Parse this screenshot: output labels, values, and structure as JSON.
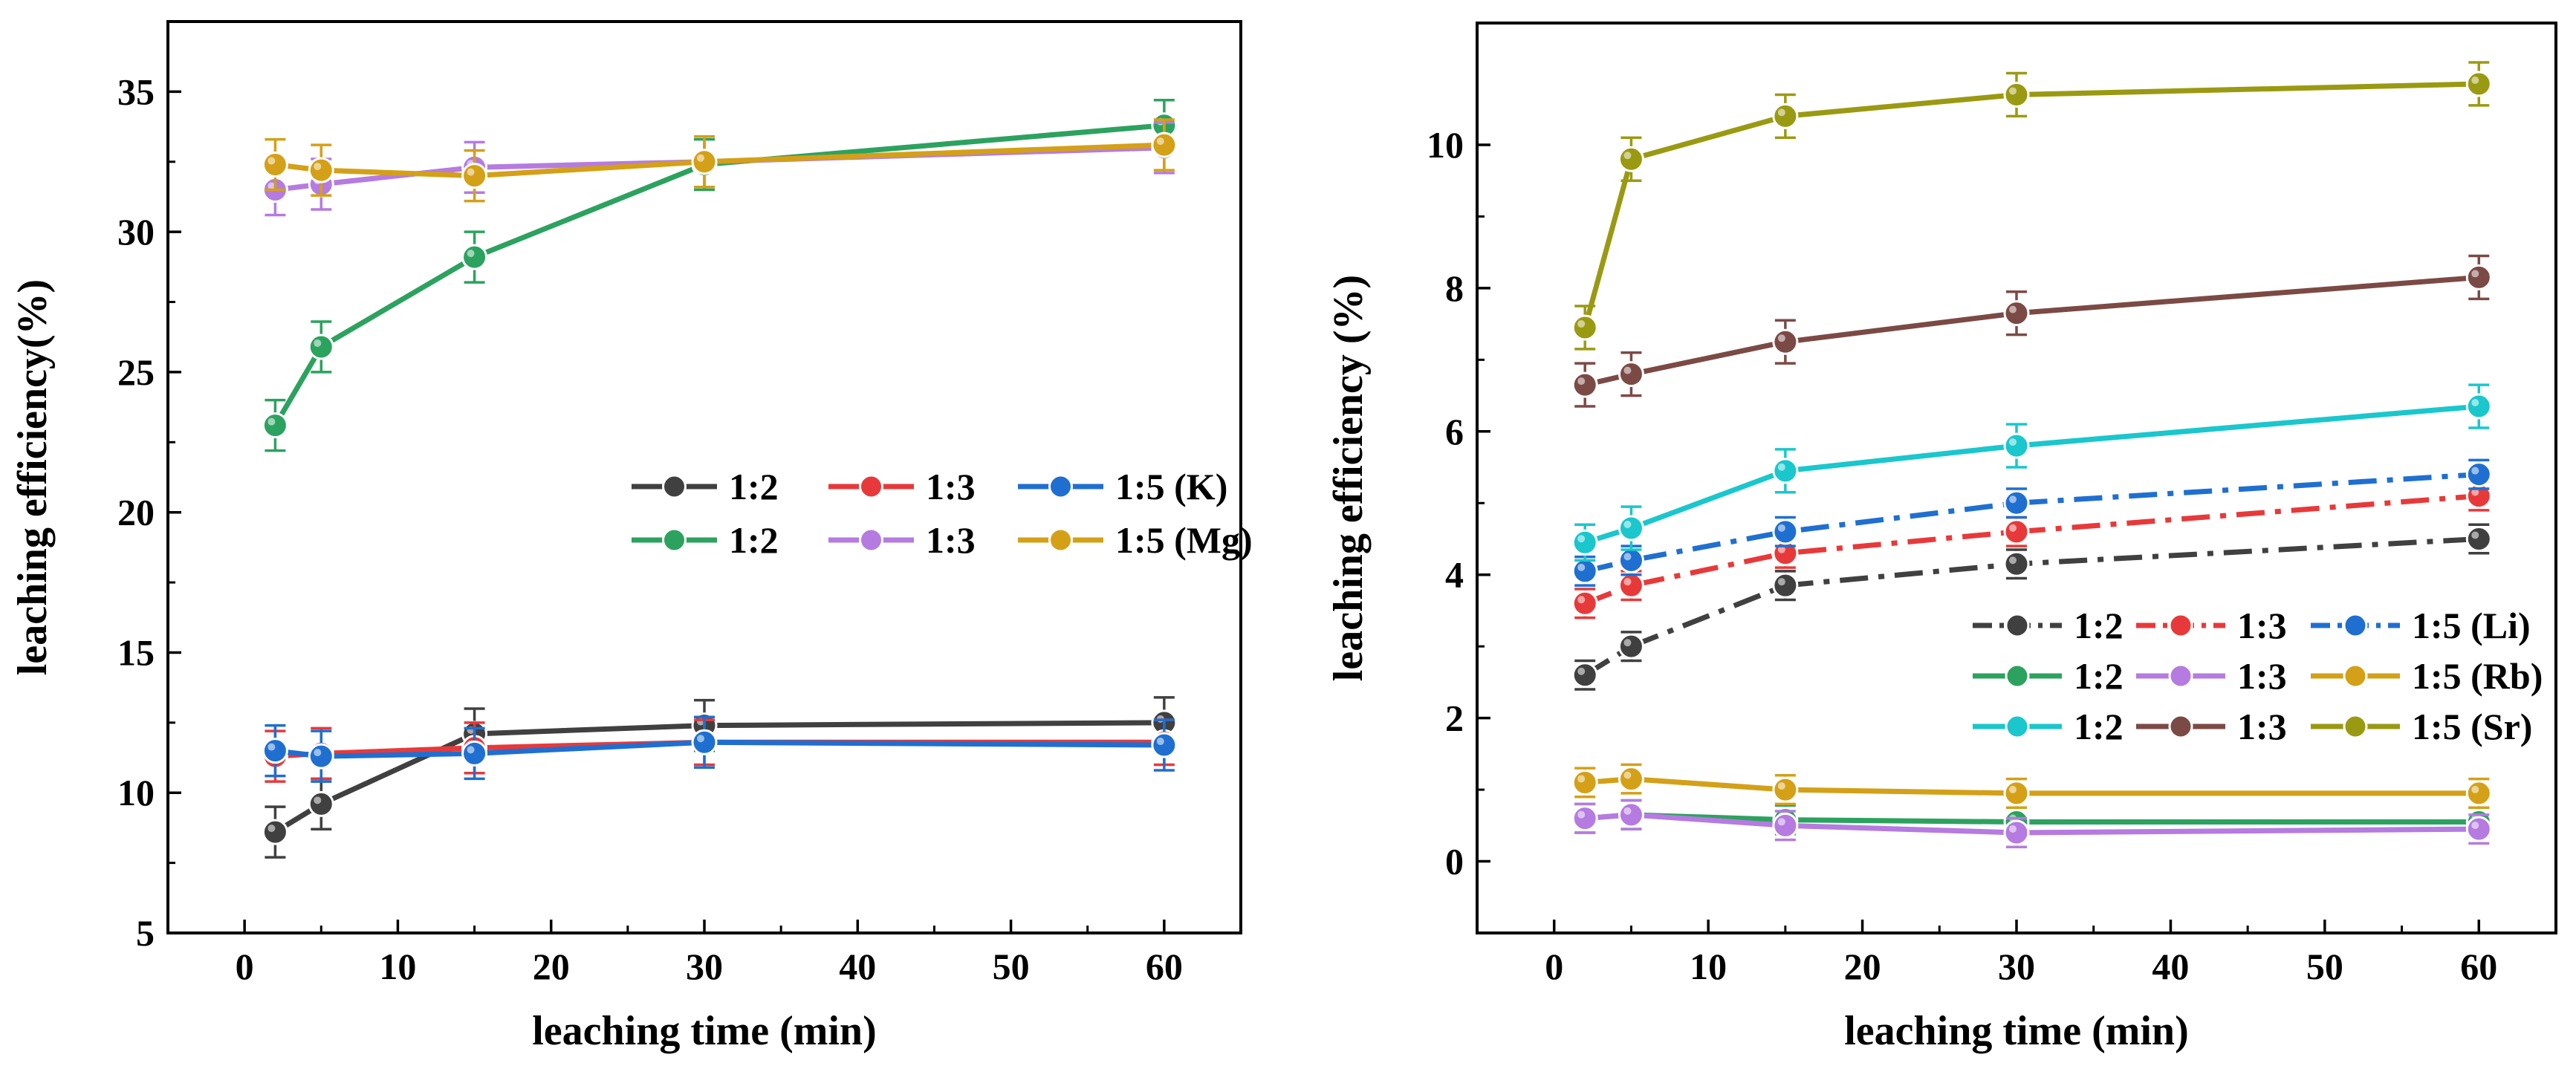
{
  "chart_data": [
    {
      "type": "line",
      "xlabel": "leaching time (min)",
      "ylabel": "leaching efficiency(%)",
      "xlim": [
        -5,
        65
      ],
      "ylim": [
        5,
        37.5
      ],
      "xticks": [
        0,
        10,
        20,
        30,
        40,
        50,
        60
      ],
      "yticks": [
        5,
        10,
        15,
        20,
        25,
        30,
        35
      ],
      "x": [
        2,
        5,
        15,
        30,
        60
      ],
      "legend_groups": [
        {
          "element": "(K)",
          "items": [
            "1:2",
            "1:3",
            "1:5"
          ]
        },
        {
          "element": "(Mg)",
          "items": [
            "1:2",
            "1:3",
            "1:5"
          ]
        }
      ],
      "series": [
        {
          "name": "1:2 (K)",
          "label": "1:2",
          "color": "#404040",
          "dash": "solid",
          "values": [
            8.6,
            9.6,
            12.1,
            12.4,
            12.5
          ],
          "err": [
            0.9,
            0.9,
            0.9,
            0.9,
            0.9
          ]
        },
        {
          "name": "1:3 (K)",
          "label": "1:3",
          "color": "#e8393a",
          "dash": "solid",
          "values": [
            11.3,
            11.4,
            11.6,
            11.8,
            11.8
          ],
          "err": [
            0.9,
            0.9,
            0.9,
            0.8,
            0.8
          ]
        },
        {
          "name": "1:5 (K)",
          "label": "1:5",
          "color": "#1f6fd1",
          "dash": "solid",
          "values": [
            11.5,
            11.3,
            11.4,
            11.8,
            11.7
          ],
          "err": [
            0.9,
            0.9,
            0.9,
            0.9,
            0.9
          ]
        },
        {
          "name": "1:2 (Mg)",
          "label": "1:2",
          "color": "#2ca25f",
          "dash": "solid",
          "values": [
            23.1,
            25.9,
            29.1,
            32.4,
            33.8
          ],
          "err": [
            0.9,
            0.9,
            0.9,
            0.9,
            0.9
          ]
        },
        {
          "name": "1:3 (Mg)",
          "label": "1:3",
          "color": "#b57be0",
          "dash": "solid",
          "values": [
            31.5,
            31.7,
            32.3,
            32.5,
            33.0
          ],
          "err": [
            0.9,
            0.9,
            0.9,
            0.9,
            0.9
          ]
        },
        {
          "name": "1:5 (Mg)",
          "label": "1:5",
          "color": "#d4a017",
          "dash": "solid",
          "values": [
            32.4,
            32.2,
            32.0,
            32.5,
            33.1
          ],
          "err": [
            0.9,
            0.9,
            0.9,
            0.9,
            0.9
          ]
        }
      ]
    },
    {
      "type": "line",
      "xlabel": "leaching time (min)",
      "ylabel": "leaching efficiency (%)",
      "xlim": [
        -5,
        65
      ],
      "ylim": [
        -1,
        11.7
      ],
      "xticks": [
        0,
        10,
        20,
        30,
        40,
        50,
        60
      ],
      "yticks": [
        0,
        2,
        4,
        6,
        8,
        10
      ],
      "x": [
        2,
        5,
        15,
        30,
        60
      ],
      "legend_groups": [
        {
          "element": "(Li)",
          "items": [
            "1:2",
            "1:3",
            "1:5"
          ]
        },
        {
          "element": "(Rb)",
          "items": [
            "1:2",
            "1:3",
            "1:5"
          ]
        },
        {
          "element": "(Sr)",
          "items": [
            "1:2",
            "1:3",
            "1:5"
          ]
        }
      ],
      "series": [
        {
          "name": "1:2 (Li)",
          "label": "1:2",
          "color": "#404040",
          "dash": "dashdot",
          "values": [
            2.6,
            3.0,
            3.85,
            4.15,
            4.5
          ],
          "err": [
            0.2,
            0.2,
            0.2,
            0.2,
            0.2
          ]
        },
        {
          "name": "1:3 (Li)",
          "label": "1:3",
          "color": "#e8393a",
          "dash": "dashdot",
          "values": [
            3.6,
            3.85,
            4.3,
            4.6,
            5.1
          ],
          "err": [
            0.2,
            0.2,
            0.2,
            0.2,
            0.2
          ]
        },
        {
          "name": "1:5 (Li)",
          "label": "1:5",
          "color": "#1f6fd1",
          "dash": "dashdot",
          "values": [
            4.05,
            4.2,
            4.6,
            5.0,
            5.4
          ],
          "err": [
            0.2,
            0.2,
            0.2,
            0.2,
            0.2
          ]
        },
        {
          "name": "1:2 (Rb)",
          "label": "1:2",
          "color": "#2ca25f",
          "dash": "solid",
          "values": [
            0.6,
            0.65,
            0.58,
            0.55,
            0.55
          ],
          "err": [
            0.2,
            0.2,
            0.2,
            0.2,
            0.2
          ]
        },
        {
          "name": "1:3 (Rb)",
          "label": "1:3",
          "color": "#b57be0",
          "dash": "solid",
          "values": [
            0.6,
            0.65,
            0.5,
            0.4,
            0.45
          ],
          "err": [
            0.2,
            0.2,
            0.2,
            0.2,
            0.2
          ]
        },
        {
          "name": "1:5 (Rb)",
          "label": "1:5",
          "color": "#d4a017",
          "dash": "solid",
          "values": [
            1.1,
            1.15,
            1.0,
            0.95,
            0.95
          ],
          "err": [
            0.2,
            0.2,
            0.2,
            0.2,
            0.2
          ]
        },
        {
          "name": "1:2 (Sr)",
          "label": "1:2",
          "color": "#19c7cc",
          "dash": "solid",
          "values": [
            4.45,
            4.65,
            5.45,
            5.8,
            6.35
          ],
          "err": [
            0.25,
            0.3,
            0.3,
            0.3,
            0.3
          ]
        },
        {
          "name": "1:3 (Sr)",
          "label": "1:3",
          "color": "#7b4a45",
          "dash": "solid",
          "values": [
            6.65,
            6.8,
            7.25,
            7.65,
            8.15
          ],
          "err": [
            0.3,
            0.3,
            0.3,
            0.3,
            0.3
          ]
        },
        {
          "name": "1:5 (Sr)",
          "label": "1:5",
          "color": "#9a9a12",
          "dash": "solid",
          "values": [
            7.45,
            9.8,
            10.4,
            10.7,
            10.85
          ],
          "err": [
            0.3,
            0.3,
            0.3,
            0.3,
            0.3
          ]
        }
      ]
    }
  ]
}
